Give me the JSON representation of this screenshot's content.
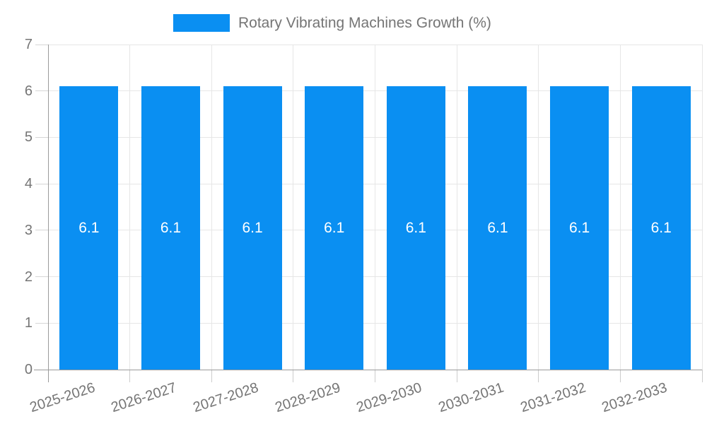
{
  "legend": {
    "label": "Rotary Vibrating Machines Growth (%)"
  },
  "chart_data": {
    "type": "bar",
    "title": "Rotary Vibrating Machines Growth (%)",
    "categories": [
      "2025-2026",
      "2026-2027",
      "2027-2028",
      "2028-2029",
      "2029-2030",
      "2030-2031",
      "2031-2032",
      "2032-2033"
    ],
    "series": [
      {
        "name": "Rotary Vibrating Machines Growth (%)",
        "values": [
          6.1,
          6.1,
          6.1,
          6.1,
          6.1,
          6.1,
          6.1,
          6.1
        ]
      }
    ],
    "bar_labels": [
      "6.1",
      "6.1",
      "6.1",
      "6.1",
      "6.1",
      "6.1",
      "6.1",
      "6.1"
    ],
    "xlabel": "",
    "ylabel": "",
    "ylim": [
      0,
      7
    ],
    "yticks": [
      0,
      1,
      2,
      3,
      4,
      5,
      6,
      7
    ],
    "grid": true,
    "legend_position": "top",
    "colors": {
      "bar": "#0a8ff2",
      "axis_text": "#757575",
      "gridline": "#e6e6e6",
      "axis_line": "#9a9a9a",
      "data_label": "#ffffff",
      "background": "#ffffff"
    }
  }
}
